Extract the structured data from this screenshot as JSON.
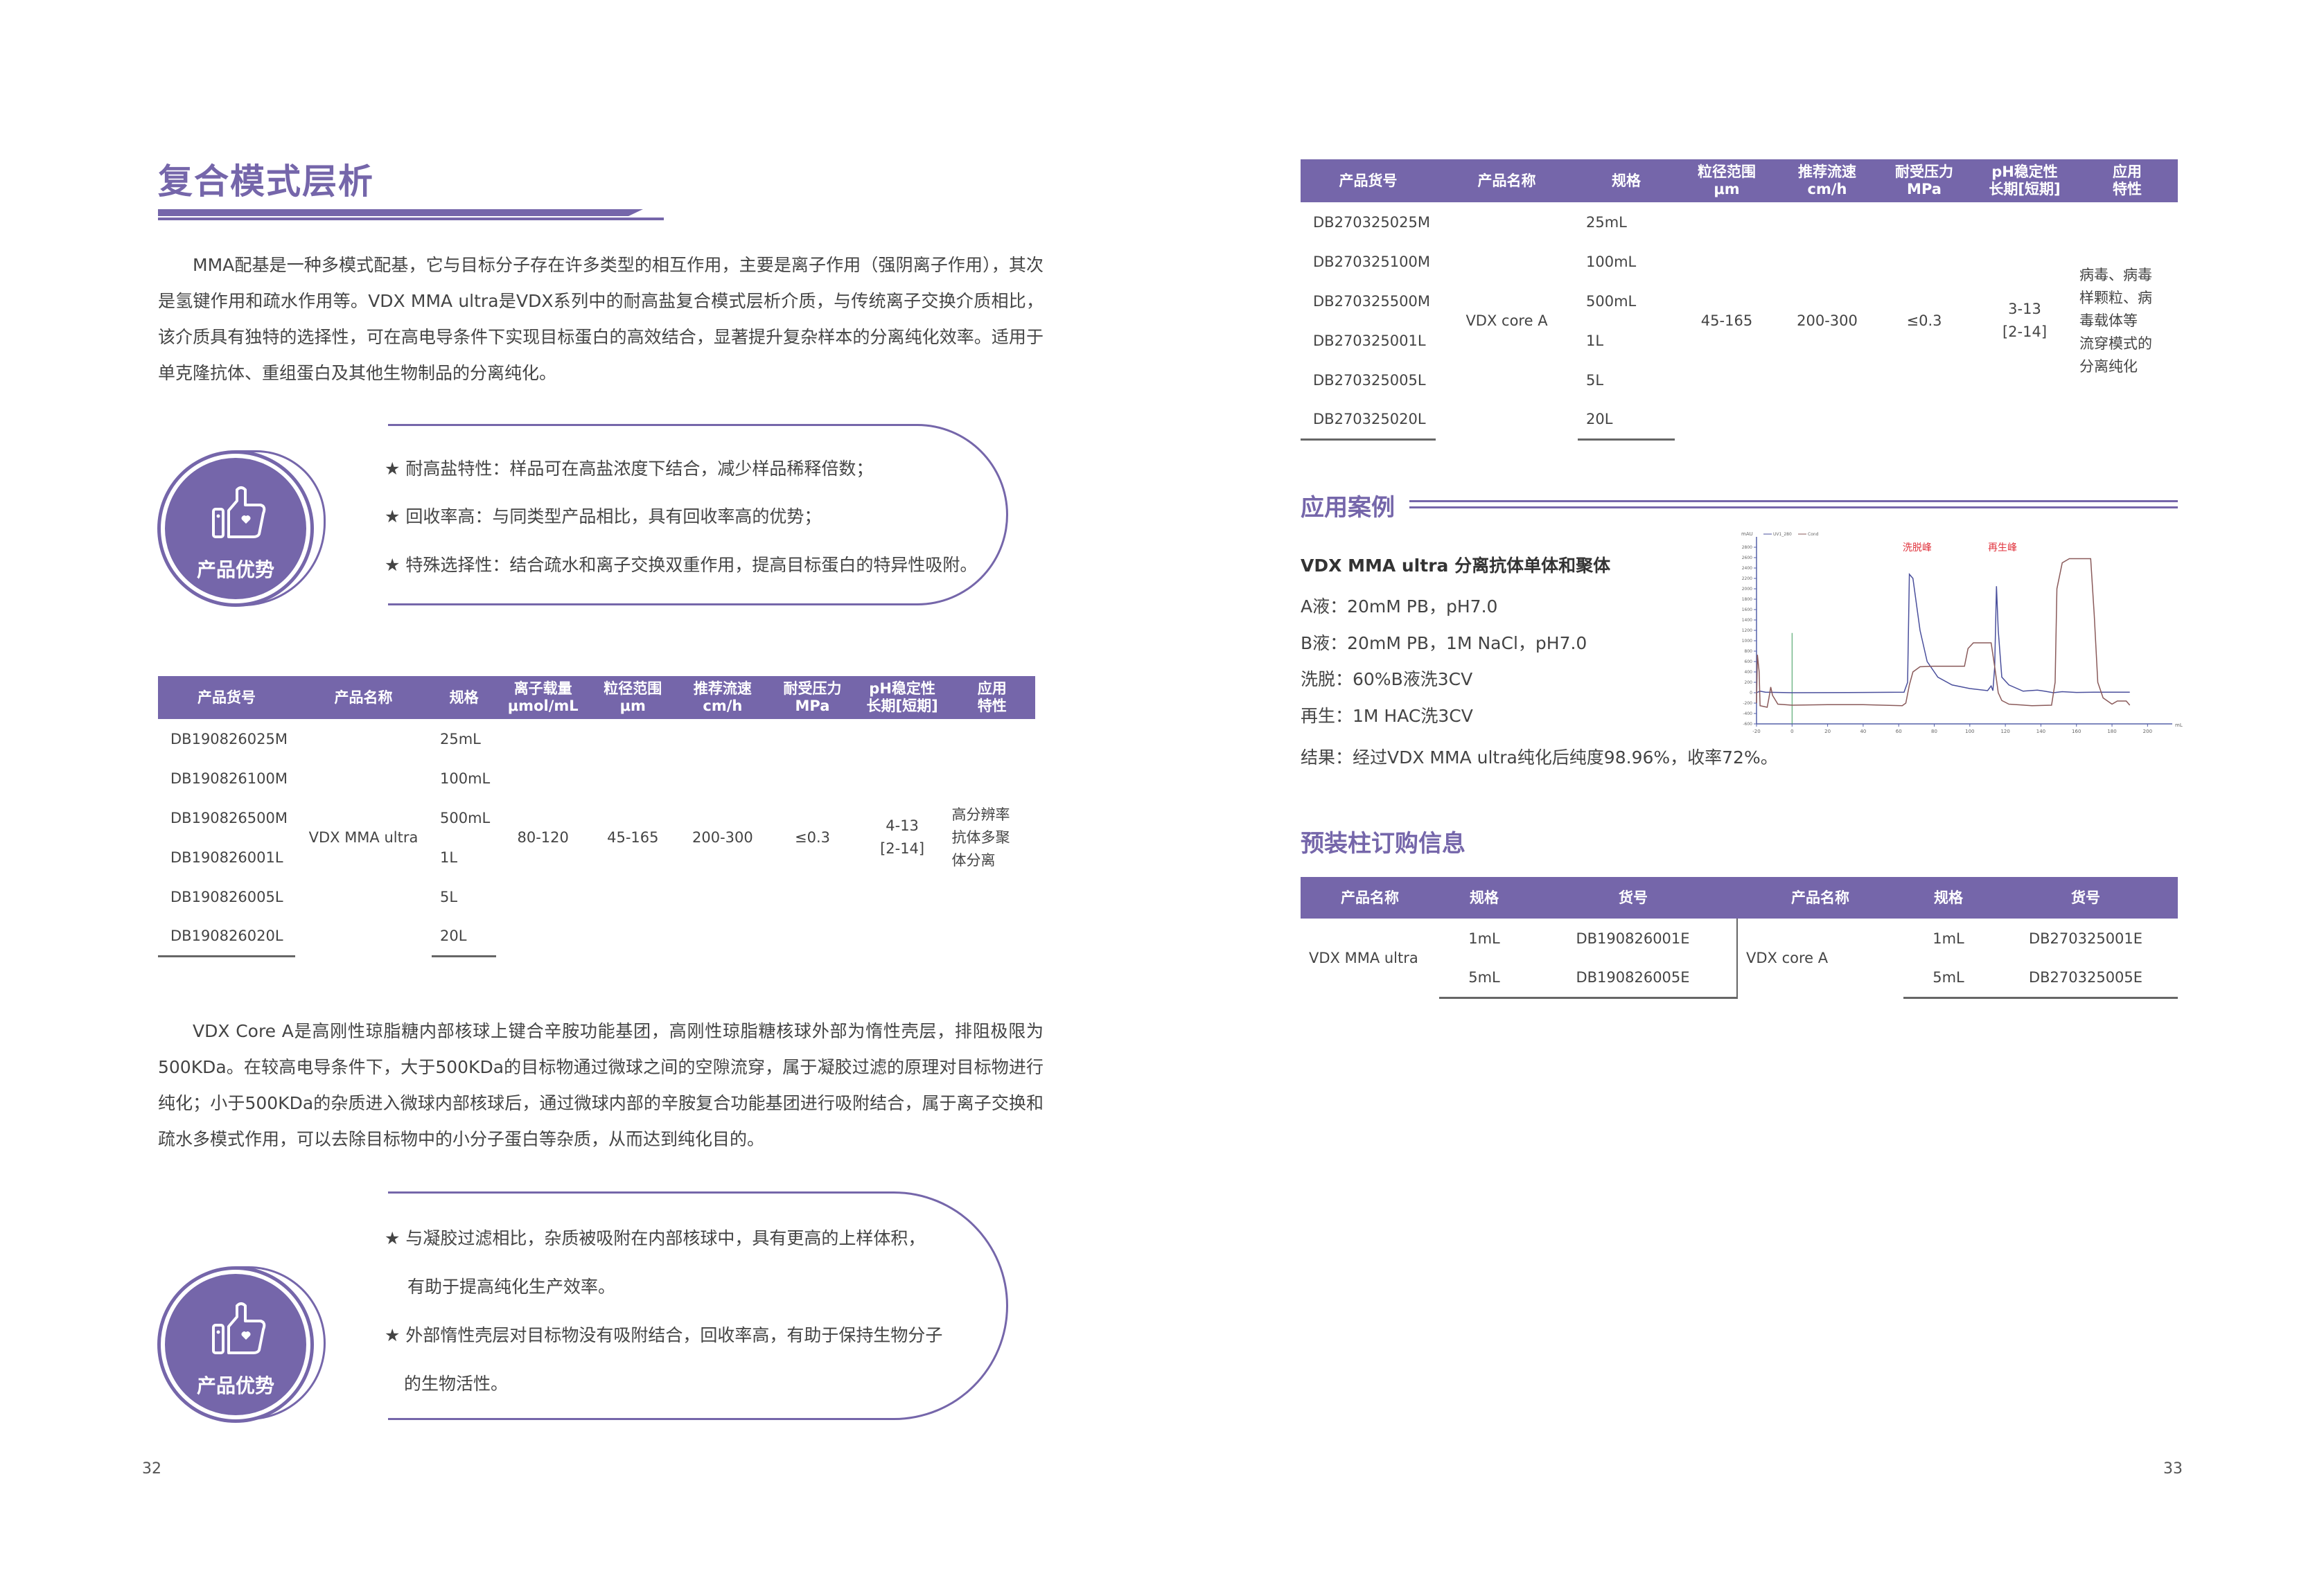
{
  "left": {
    "title": "复合模式层析",
    "intro": "MMA配基是一种多模式配基，它与目标分子存在许多类型的相互作用，主要是离子作用（强阴离子作用），其次是氢键作用和疏水作用等。VDX MMA ultra是VDX系列中的耐高盐复合模式层析介质，与传统离子交换介质相比，该介质具有独特的选择性，可在高电导条件下实现目标蛋白的高效结合，显著提升复杂样本的分离纯化效率。适用于单克隆抗体、重组蛋白及其他生物制品的分离纯化。",
    "advantages1": {
      "badge": "产品优势",
      "items": [
        "★ 耐高盐特性：样品可在高盐浓度下结合，减少样品稀释倍数；",
        "★ 回收率高：与同类型产品相比，具有回收率高的优势；",
        "★ 特殊选择性：结合疏水和离子交换双重作用，提高目标蛋白的特异性吸附。"
      ]
    },
    "table": {
      "headers": [
        "产品货号",
        "产品名称",
        "规格",
        "离子载量\nμmol/mL",
        "粒径范围\nμm",
        "推荐流速\ncm/h",
        "耐受压力\nMPa",
        "pH稳定性\n长期[短期]",
        "应用\n特性"
      ],
      "codes": [
        "DB190826025M",
        "DB190826100M",
        "DB190826500M",
        "DB190826001L",
        "DB190826005L",
        "DB190826020L"
      ],
      "sizes": [
        "25mL",
        "100mL",
        "500mL",
        "1L",
        "5L",
        "20L"
      ],
      "merged": [
        "VDX MMA ultra",
        "80-120",
        "45-165",
        "200-300",
        "≤0.3",
        "4-13\n[2-14]",
        "高分辨率\n抗体多聚\n体分离"
      ]
    },
    "body2": "VDX Core A是高刚性琼脂糖内部核球上键合辛胺功能基团，高刚性琼脂糖核球外部为惰性壳层，排阻极限为500KDa。在较高电导条件下，大于500KDa的目标物通过微球之间的空隙流穿，属于凝胶过滤的原理对目标物进行纯化；小于500KDa的杂质进入微球内部核球后，通过微球内部的辛胺复合功能基团进行吸附结合，属于离子交换和疏水多模式作用，可以去除目标物中的小分子蛋白等杂质，从而达到纯化目的。",
    "advantages2": {
      "badge": "产品优势",
      "items": [
        "★ 与凝胶过滤相比，杂质被吸附在内部核球中，具有更高的上样体积，",
        "有助于提高纯化生产效率。",
        "★ 外部惰性壳层对目标物没有吸附结合，回收率高，有助于保持生物分子",
        "的生物活性。"
      ]
    },
    "page_number": "32"
  },
  "right": {
    "table": {
      "headers": [
        "产品货号",
        "产品名称",
        "规格",
        "粒径范围\nμm",
        "推荐流速\ncm/h",
        "耐受压力\nMPa",
        "pH稳定性\n长期[短期]",
        "应用\n特性"
      ],
      "codes": [
        "DB270325025M",
        "DB270325100M",
        "DB270325500M",
        "DB270325001L",
        "DB270325005L",
        "DB270325020L"
      ],
      "sizes": [
        "25mL",
        "100mL",
        "500mL",
        "1L",
        "5L",
        "20L"
      ],
      "merged": [
        "VDX core A",
        "45-165",
        "200-300",
        "≤0.3",
        "3-13\n[2-14]",
        "病毒、病毒\n样颗粒、病\n毒载体等\n流穿模式的\n分离纯化"
      ]
    },
    "case_heading": "应用案例",
    "case": {
      "title": "VDX MMA ultra 分离抗体单体和聚体",
      "lines": [
        "A液：20mM PB，pH7.0",
        "B液：20mM PB，1M NaCl，pH7.0",
        "洗脱：60%B液洗3CV",
        "再生：1M HAC洗3CV"
      ],
      "result": "结果：经过VDX MMA ultra纯化后纯度98.96%，收率72%。"
    },
    "order_heading": "预装柱订购信息",
    "order": {
      "headers": [
        "产品名称",
        "规格",
        "货号",
        "产品名称",
        "规格",
        "货号"
      ],
      "groups": [
        {
          "name": "VDX MMA ultra",
          "rows": [
            [
              "1mL",
              "DB190826001E"
            ],
            [
              "5mL",
              "DB190826005E"
            ]
          ]
        },
        {
          "name": "VDX core A",
          "rows": [
            [
              "1mL",
              "DB270325001E"
            ],
            [
              "5mL",
              "DB270325005E"
            ]
          ]
        }
      ]
    },
    "page_number": "33"
  },
  "chart_data": {
    "type": "line",
    "xlabel": "mL",
    "ylabel": "mAU",
    "xlim": [
      -20,
      210
    ],
    "ylim": [
      -600,
      3000
    ],
    "xticks": [
      -20,
      0,
      20,
      40,
      60,
      80,
      100,
      120,
      140,
      160,
      180,
      200
    ],
    "yticks": [
      -600,
      -400,
      -200,
      0,
      200,
      400,
      600,
      800,
      1000,
      1200,
      1400,
      1600,
      1800,
      2000,
      2200,
      2400,
      2600,
      2800
    ],
    "legend": [
      "UV1_280",
      "Cond"
    ],
    "annotations": [
      "洗脱峰",
      "再生峰"
    ],
    "marker_x": 0,
    "series": [
      {
        "name": "UV1_280",
        "color": "#4a4f9c",
        "points": [
          [
            -20,
            0
          ],
          [
            -18,
            30
          ],
          [
            -15,
            10
          ],
          [
            0,
            0
          ],
          [
            40,
            5
          ],
          [
            63,
            10
          ],
          [
            65,
            200
          ],
          [
            66,
            2280
          ],
          [
            68,
            2200
          ],
          [
            72,
            1200
          ],
          [
            76,
            600
          ],
          [
            82,
            300
          ],
          [
            90,
            150
          ],
          [
            100,
            80
          ],
          [
            110,
            40
          ],
          [
            112,
            130
          ],
          [
            113,
            40
          ],
          [
            114,
            500
          ],
          [
            115,
            2050
          ],
          [
            116,
            1200
          ],
          [
            118,
            300
          ],
          [
            122,
            150
          ],
          [
            130,
            30
          ],
          [
            138,
            50
          ],
          [
            142,
            30
          ],
          [
            147,
            0
          ],
          [
            152,
            20
          ],
          [
            160,
            5
          ],
          [
            170,
            10
          ],
          [
            190,
            10
          ]
        ]
      },
      {
        "name": "Cond",
        "color": "#8a5a5a",
        "points": [
          [
            -20,
            -200
          ],
          [
            -19.5,
            730
          ],
          [
            -18.5,
            400
          ],
          [
            -18,
            -250
          ],
          [
            -14,
            -280
          ],
          [
            -13,
            -100
          ],
          [
            -12,
            110
          ],
          [
            -11,
            -50
          ],
          [
            -8,
            -220
          ],
          [
            0,
            -240
          ],
          [
            20,
            -230
          ],
          [
            40,
            -230
          ],
          [
            62,
            -250
          ],
          [
            64,
            -200
          ],
          [
            66,
            150
          ],
          [
            68,
            400
          ],
          [
            72,
            500
          ],
          [
            80,
            510
          ],
          [
            97,
            510
          ],
          [
            99,
            850
          ],
          [
            102,
            960
          ],
          [
            112,
            960
          ],
          [
            114,
            500
          ],
          [
            116,
            0
          ],
          [
            118,
            -150
          ],
          [
            122,
            -220
          ],
          [
            135,
            -250
          ],
          [
            146,
            -240
          ],
          [
            148,
            200
          ],
          [
            149,
            2000
          ],
          [
            152,
            2500
          ],
          [
            156,
            2580
          ],
          [
            168,
            2580
          ],
          [
            170,
            1500
          ],
          [
            172,
            200
          ],
          [
            175,
            -100
          ],
          [
            180,
            -220
          ],
          [
            183,
            -160
          ],
          [
            188,
            -160
          ],
          [
            190,
            -240
          ]
        ]
      }
    ]
  },
  "colors": {
    "accent": "#7566aa",
    "text": "#444444",
    "annotation": "#e0323c"
  }
}
